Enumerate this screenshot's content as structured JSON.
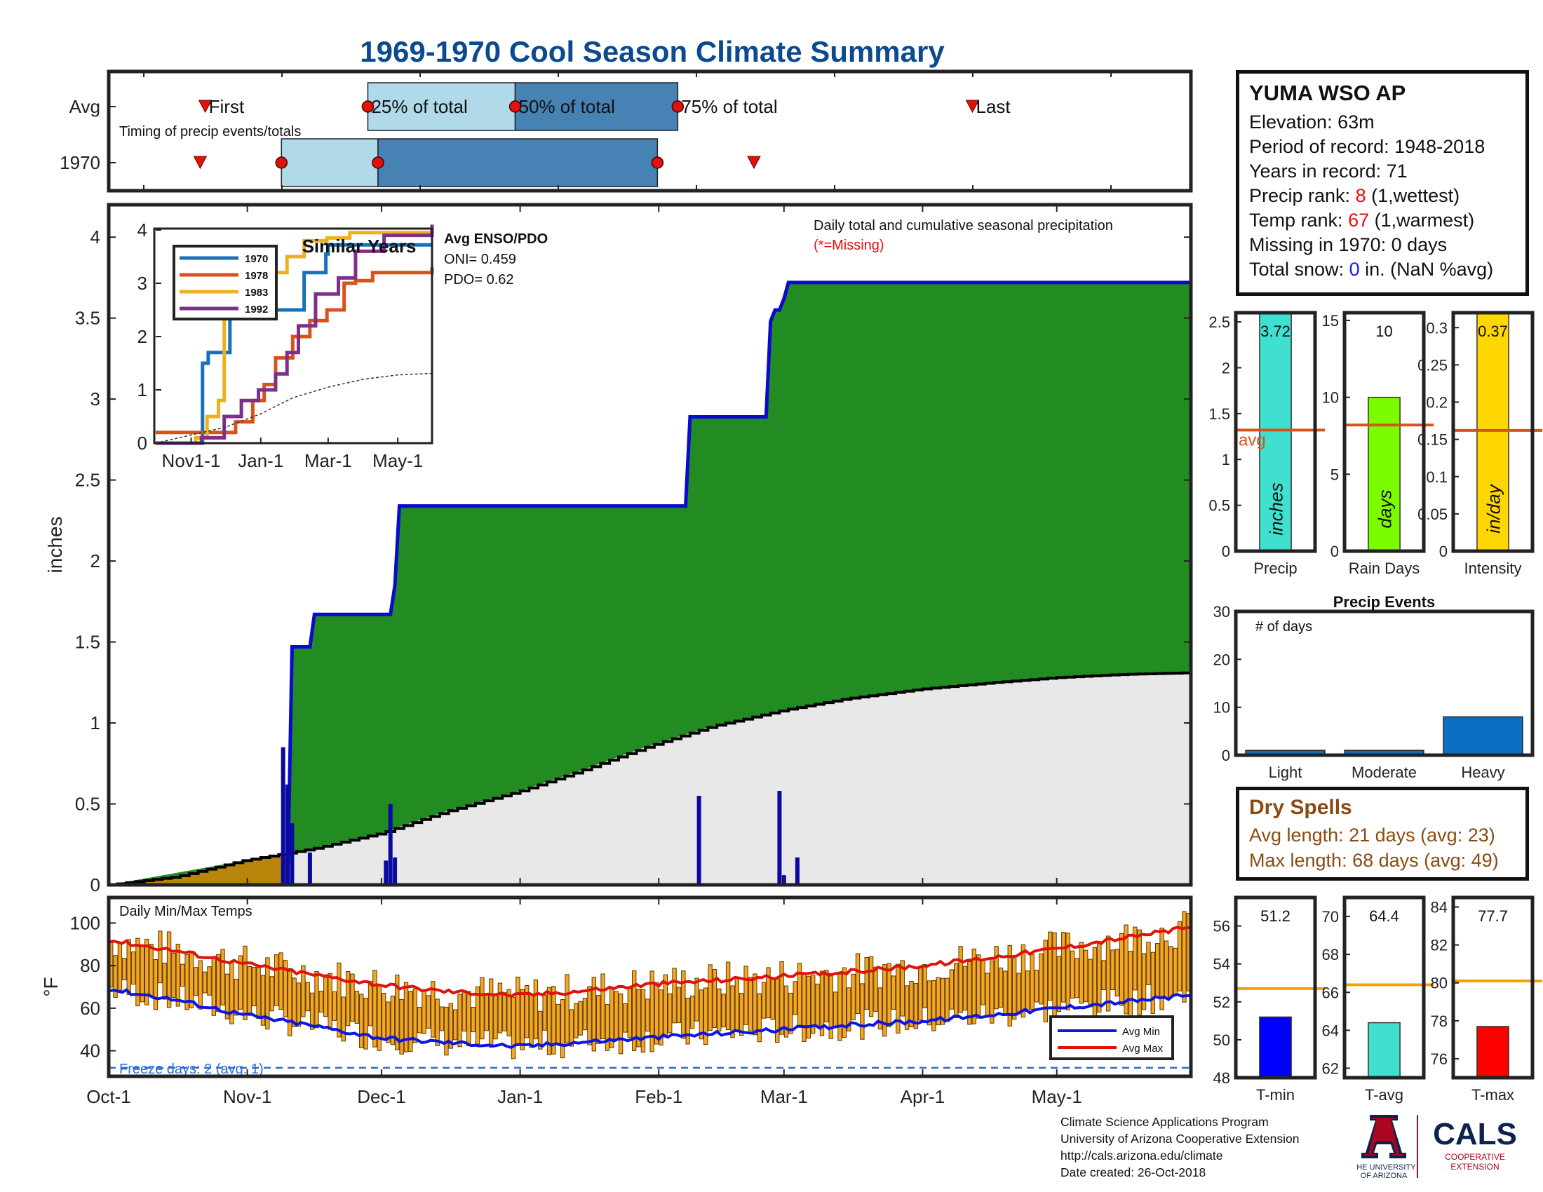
{
  "title": "1969-1970 Cool Season Climate Summary",
  "timing_panel": {
    "row_labels": [
      "Avg",
      "1970"
    ],
    "note": "Timing of precip events/totals",
    "markers": [
      "First",
      "25% of total",
      "50% of total",
      "75% of total",
      "Last"
    ],
    "avg_days": {
      "first": 17,
      "p25": 49,
      "p50": 78,
      "p75": 110,
      "last": 168
    },
    "y1970_days": {
      "first": 16,
      "p25": 32,
      "p50": 51,
      "p75": 106,
      "last": 125
    },
    "x_range_days": [
      -2,
      211
    ]
  },
  "station": {
    "name": "YUMA WSO AP",
    "elevation": "Elevation: 63m",
    "period": "Period of record: 1948-2018",
    "years": "Years in record: 71",
    "precip_rank_prefix": "Precip rank: ",
    "precip_rank": "8",
    "precip_rank_suffix": " (1,wettest)",
    "temp_rank_prefix": "Temp rank: ",
    "temp_rank": "67",
    "temp_rank_suffix": " (1,warmest)",
    "missing": "Missing in 1970: 0 days",
    "snow_prefix": "Total snow: ",
    "snow_value": "0",
    "snow_suffix": " in. (NaN %avg)"
  },
  "main_chart": {
    "ylabel": "inches",
    "note": "Daily total and cumulative seasonal precipitation",
    "missing_note": "(*=Missing)",
    "x_ticks": [
      "Oct-1",
      "Nov-1",
      "Dec-1",
      "Jan-1",
      "Feb-1",
      "Mar-1",
      "Apr-1",
      "May-1"
    ],
    "x_tick_days": [
      0,
      31,
      61,
      92,
      123,
      151,
      182,
      212
    ],
    "y_ticks": [
      "0",
      "0.5",
      "1",
      "1.5",
      "2",
      "2.5",
      "3",
      "3.5",
      "4"
    ],
    "ylim": [
      0,
      4.2
    ],
    "xlim_days": [
      0,
      242
    ]
  },
  "inset": {
    "title": "Similar Years",
    "x_ticks": [
      "Nov1-1",
      "Jan-1",
      "Mar-1",
      "May-1"
    ],
    "x_tick_days": [
      31,
      92,
      151,
      212
    ],
    "y_ticks": [
      "0",
      "1",
      "2",
      "3",
      "4"
    ],
    "legend": [
      "1970",
      "1978",
      "1983",
      "1992"
    ],
    "colors": [
      "#1872b8",
      "#d95319",
      "#edb120",
      "#7e2f8e"
    ],
    "enso_title": "Avg ENSO/PDO",
    "oni": "ONI= 0.459",
    "pdo": "PDO= 0.62"
  },
  "bars_precip": {
    "precip": {
      "label": "Precip",
      "unit": "inches",
      "value": "3.72",
      "avg": 1.32,
      "ymax": 2.6,
      "ticks": [
        "0",
        "0.5",
        "1",
        "1.5",
        "2",
        "2.5"
      ],
      "color": "#40e0d0",
      "avg_label": "avg"
    },
    "rain_days": {
      "label": "Rain Days",
      "unit": "days",
      "value": "10",
      "avg": 8.2,
      "ymax": 15.5,
      "ticks": [
        "0",
        "5",
        "10",
        "15"
      ],
      "color": "#7cfc00"
    },
    "intensity": {
      "label": "Intensity",
      "unit": "in/day",
      "value": "0.37",
      "avg": 0.162,
      "ymax": 0.32,
      "ticks": [
        "0",
        "0.05",
        "0.1",
        "0.15",
        "0.2",
        "0.25",
        "0.3"
      ],
      "color": "#ffd700"
    }
  },
  "precip_events": {
    "title": "Precip Events",
    "ylabel": "# of days",
    "categories": [
      "Light",
      "Moderate",
      "Heavy"
    ],
    "values": [
      1,
      1,
      8
    ],
    "y_ticks": [
      "0",
      "10",
      "20",
      "30"
    ],
    "ylim": [
      0,
      30
    ]
  },
  "dry_spells": {
    "title": "Dry Spells",
    "avg_line": "Avg length: 21 days (avg: 23)",
    "max_line": "Max length: 68 days (avg: 49)"
  },
  "temps": {
    "title": "Daily Min/Max Temps",
    "ylabel": "°F",
    "y_ticks": [
      "40",
      "60",
      "80",
      "100"
    ],
    "ylim": [
      28,
      112
    ],
    "freeze_note": "Freeze days: 2 (avg. 1)",
    "legend_min": "Avg Min",
    "legend_max": "Avg Max",
    "avg_min_points": [
      [
        0,
        69
      ],
      [
        15,
        64
      ],
      [
        30,
        57
      ],
      [
        45,
        52
      ],
      [
        61,
        46
      ],
      [
        75,
        44
      ],
      [
        92,
        42
      ],
      [
        105,
        44
      ],
      [
        120,
        46
      ],
      [
        135,
        48
      ],
      [
        151,
        50
      ],
      [
        165,
        52
      ],
      [
        182,
        54
      ],
      [
        198,
        57
      ],
      [
        212,
        60
      ],
      [
        227,
        63
      ],
      [
        242,
        66
      ]
    ],
    "avg_max_points": [
      [
        0,
        92
      ],
      [
        15,
        87
      ],
      [
        30,
        81
      ],
      [
        45,
        76
      ],
      [
        61,
        71
      ],
      [
        75,
        68
      ],
      [
        92,
        66
      ],
      [
        105,
        68
      ],
      [
        120,
        71
      ],
      [
        135,
        73
      ],
      [
        151,
        75
      ],
      [
        165,
        77
      ],
      [
        182,
        80
      ],
      [
        198,
        84
      ],
      [
        212,
        88
      ],
      [
        227,
        93
      ],
      [
        242,
        98
      ]
    ]
  },
  "temp_bars": {
    "tmin": {
      "label": "T-min",
      "value": "51.2",
      "avg": 52.7,
      "ylim": [
        48,
        57.5
      ],
      "ticks": [
        "48",
        "50",
        "52",
        "54",
        "56"
      ],
      "color": "#0000ff"
    },
    "tavg": {
      "label": "T-avg",
      "value": "64.4",
      "avg": 66.4,
      "ylim": [
        61.5,
        71
      ],
      "ticks": [
        "62",
        "64",
        "66",
        "68",
        "70"
      ],
      "color": "#40e0d0"
    },
    "tmax": {
      "label": "T-max",
      "value": "77.7",
      "avg": 80.1,
      "ylim": [
        75,
        84.5
      ],
      "ticks": [
        "76",
        "78",
        "80",
        "82",
        "84"
      ],
      "color": "#ff0000"
    }
  },
  "credits": {
    "line1": "Climate Science Applications Program",
    "line2": "University of Arizona Cooperative Extension",
    "line3": "http://cals.arizona.edu/climate",
    "line4": " Date created: 26-Oct-2018"
  },
  "logo": {
    "ua_line1": "THE UNIVERSITY",
    "ua_line2": "OF ARIZONA",
    "cals": "CALS",
    "coop1": "COOPERATIVE",
    "coop2": "EXTENSION"
  },
  "chart_data": [
    {
      "type": "area",
      "title": "Daily total and cumulative seasonal precipitation",
      "ylabel": "inches",
      "x_ticks": [
        "Oct-1",
        "Nov-1",
        "Dec-1",
        "Jan-1",
        "Feb-1",
        "Mar-1",
        "Apr-1",
        "May-1"
      ],
      "ylim": [
        0,
        4.2
      ],
      "series": [
        {
          "name": "Cumulative 1970",
          "x_days": [
            0,
            40,
            41,
            45,
            46,
            51,
            63,
            64,
            65,
            70,
            129,
            130,
            147,
            148,
            149,
            150,
            151,
            152,
            242
          ],
          "values": [
            0,
            0,
            1.47,
            1.47,
            1.67,
            1.67,
            1.67,
            1.85,
            2.34,
            2.34,
            2.34,
            2.89,
            2.89,
            3.48,
            3.55,
            3.55,
            3.62,
            3.72,
            3.72
          ]
        },
        {
          "name": "Average cumulative",
          "x_days": [
            0,
            15,
            30,
            45,
            61,
            75,
            92,
            105,
            120,
            135,
            151,
            165,
            182,
            198,
            212,
            227,
            242
          ],
          "values": [
            0,
            0.05,
            0.15,
            0.22,
            0.32,
            0.45,
            0.58,
            0.7,
            0.85,
            0.98,
            1.08,
            1.15,
            1.21,
            1.25,
            1.28,
            1.3,
            1.31
          ]
        },
        {
          "name": "Daily precip",
          "x_days": [
            39,
            40,
            41,
            45,
            62,
            63,
            64,
            132,
            150,
            151,
            154
          ],
          "values": [
            0.85,
            0.62,
            0.38,
            0.2,
            0.15,
            0.5,
            0.17,
            0.55,
            0.58,
            0.06,
            0.17
          ]
        }
      ]
    },
    {
      "type": "line",
      "title": "Similar Years",
      "x_ticks": [
        "Nov1-1",
        "Jan-1",
        "Mar-1",
        "May-1"
      ],
      "ylim": [
        0,
        4
      ],
      "series": [
        {
          "name": "1970",
          "x_days": [
            0,
            40,
            41,
            45,
            46,
            63,
            65,
            129,
            130,
            147,
            149,
            151,
            242
          ],
          "values": [
            0,
            0,
            1.5,
            1.5,
            1.7,
            1.7,
            2.5,
            2.5,
            3.2,
            3.2,
            3.55,
            3.72,
            3.72
          ]
        },
        {
          "name": "1978",
          "x_days": [
            0,
            55,
            70,
            85,
            95,
            105,
            120,
            135,
            150,
            165,
            175,
            190,
            242
          ],
          "values": [
            0.2,
            0.2,
            0.4,
            0.8,
            1.1,
            1.6,
            2.0,
            2.3,
            2.5,
            3.0,
            3.05,
            3.2,
            3.3
          ]
        },
        {
          "name": "1983",
          "x_days": [
            0,
            35,
            45,
            55,
            60,
            62,
            75,
            85,
            100,
            115,
            130,
            150,
            170,
            242
          ],
          "values": [
            0,
            0.1,
            0.5,
            0.8,
            2.5,
            2.5,
            2.5,
            2.5,
            3.2,
            3.5,
            3.8,
            3.85,
            3.95,
            4.1
          ]
        },
        {
          "name": "1992",
          "x_days": [
            0,
            40,
            60,
            75,
            90,
            105,
            115,
            125,
            140,
            160,
            175,
            200,
            242
          ],
          "values": [
            0,
            0.1,
            0.5,
            0.8,
            1.0,
            1.3,
            1.7,
            2.2,
            2.8,
            3.1,
            3.6,
            3.9,
            4.1
          ]
        },
        {
          "name": "Avg",
          "x_days": [
            0,
            61,
            92,
            120,
            151,
            182,
            212,
            242
          ],
          "values": [
            0,
            0.3,
            0.55,
            0.85,
            1.05,
            1.2,
            1.28,
            1.31
          ]
        }
      ]
    },
    {
      "type": "bar",
      "title": "Precip Events",
      "categories": [
        "Light",
        "Moderate",
        "Heavy"
      ],
      "values": [
        1,
        1,
        8
      ],
      "ylim": [
        0,
        30
      ]
    },
    {
      "type": "bar",
      "categories": [
        "Precip",
        "Rain Days",
        "Intensity"
      ],
      "values": [
        3.72,
        10,
        0.37
      ],
      "averages": [
        1.32,
        8.2,
        0.162
      ]
    },
    {
      "type": "bar",
      "categories": [
        "T-min",
        "T-avg",
        "T-max"
      ],
      "values": [
        51.2,
        64.4,
        77.7
      ],
      "averages": [
        52.7,
        66.4,
        80.1
      ]
    }
  ]
}
